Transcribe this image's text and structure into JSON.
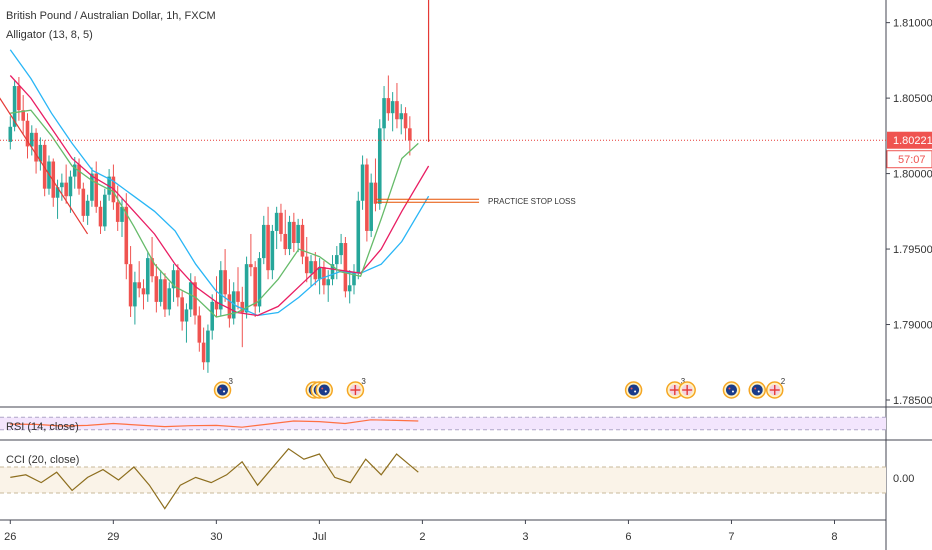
{
  "header": {
    "title": "British Pound / Australian Dollar, 1h, FXCM",
    "indicator": "Alligator (13, 8, 5)"
  },
  "annotation": {
    "label": "PRACTICE STOP LOSS"
  },
  "price_tag": {
    "price": "1.80221",
    "countdown": "57:07"
  },
  "rsi_panel": {
    "label": "RSI (14, close)"
  },
  "cci_panel": {
    "label": "CCI (20, close)",
    "tick": "0.00"
  },
  "colors": {
    "bull": "#26a69a",
    "bear": "#ef5350",
    "jaw": "#29b6f6",
    "teeth": "#e91e63",
    "lips": "#66bb6a",
    "rsi": "#ff7043",
    "cci": "#8d6e1e",
    "rsi_band": "#f3e5fd",
    "cci_band": "#faf3e8",
    "price_line": "#e53935",
    "trend_line": "#e53935"
  },
  "events": [
    {
      "time": 2.06,
      "flags": [
        "au"
      ],
      "count": "3"
    },
    {
      "time": 2.95,
      "flags": [
        "au",
        "au",
        "au"
      ],
      "count": ""
    },
    {
      "time": 3.35,
      "flags": [
        "gb"
      ],
      "count": "3"
    },
    {
      "time": 6.05,
      "flags": [
        "au"
      ],
      "count": ""
    },
    {
      "time": 6.45,
      "flags": [
        "gb"
      ],
      "count": "3"
    },
    {
      "time": 6.57,
      "flags": [
        "gb"
      ],
      "count": ""
    },
    {
      "time": 7.0,
      "flags": [
        "au"
      ],
      "count": ""
    },
    {
      "time": 7.25,
      "flags": [
        "au"
      ],
      "count": ""
    },
    {
      "time": 7.42,
      "flags": [
        "gb"
      ],
      "count": "2"
    }
  ],
  "chart_data": {
    "type": "candlestick",
    "title": "British Pound / Australian Dollar, 1h, FXCM",
    "x_ticks": [
      "26",
      "29",
      "30",
      "Jul",
      "2",
      "3",
      "6",
      "7",
      "8"
    ],
    "x_tick_times": [
      0,
      1,
      2,
      3,
      4,
      5,
      6,
      7,
      8
    ],
    "y_ticks": [
      "1.81000",
      "1.80500",
      "1.80000",
      "1.79500",
      "1.79000",
      "1.78500"
    ],
    "ylim": [
      1.785,
      1.8115
    ],
    "time_range": [
      -0.1,
      8.5
    ],
    "bar_start": 0.0,
    "bar_step": 0.0417,
    "candles": [
      [
        1.8021,
        1.8038,
        1.8016,
        1.8031
      ],
      [
        1.8031,
        1.8062,
        1.8028,
        1.8058
      ],
      [
        1.8058,
        1.8064,
        1.8035,
        1.8042
      ],
      [
        1.8042,
        1.8052,
        1.8026,
        1.8035
      ],
      [
        1.8035,
        1.804,
        1.801,
        1.8018
      ],
      [
        1.8018,
        1.8032,
        1.8012,
        1.8027
      ],
      [
        1.8027,
        1.803,
        1.8,
        1.8008
      ],
      [
        1.8008,
        1.8024,
        1.8002,
        1.8019
      ],
      [
        1.8019,
        1.8022,
        1.7985,
        1.799
      ],
      [
        1.799,
        1.8012,
        1.7986,
        1.8008
      ],
      [
        1.8008,
        1.801,
        1.7978,
        1.7984
      ],
      [
        1.7984,
        1.7996,
        1.797,
        1.7991
      ],
      [
        1.7991,
        1.8,
        1.7982,
        1.7994
      ],
      [
        1.7994,
        1.8006,
        1.798,
        1.7985
      ],
      [
        1.7985,
        1.8002,
        1.7974,
        1.7998
      ],
      [
        1.7998,
        1.8011,
        1.799,
        1.8006
      ],
      [
        1.8006,
        1.801,
        1.7986,
        1.799
      ],
      [
        1.799,
        1.7994,
        1.7968,
        1.7972
      ],
      [
        1.7972,
        1.7986,
        1.7966,
        1.7982
      ],
      [
        1.7982,
        1.8004,
        1.7978,
        1.8
      ],
      [
        1.8,
        1.8008,
        1.7974,
        1.7978
      ],
      [
        1.7978,
        1.7982,
        1.796,
        1.7965
      ],
      [
        1.7965,
        1.799,
        1.7962,
        1.7986
      ],
      [
        1.7986,
        1.8003,
        1.7982,
        1.7998
      ],
      [
        1.7998,
        1.8006,
        1.7976,
        1.7981
      ],
      [
        1.7981,
        1.7992,
        1.7962,
        1.7968
      ],
      [
        1.7968,
        1.7984,
        1.7958,
        1.7978
      ],
      [
        1.7978,
        1.7987,
        1.793,
        1.794
      ],
      [
        1.794,
        1.7952,
        1.7905,
        1.7912
      ],
      [
        1.7912,
        1.7935,
        1.79,
        1.7928
      ],
      [
        1.7928,
        1.7942,
        1.7918,
        1.7924
      ],
      [
        1.7924,
        1.793,
        1.791,
        1.792
      ],
      [
        1.792,
        1.7948,
        1.7915,
        1.7944
      ],
      [
        1.7944,
        1.7958,
        1.7928,
        1.7932
      ],
      [
        1.7932,
        1.794,
        1.7908,
        1.7915
      ],
      [
        1.7915,
        1.7936,
        1.7912,
        1.793
      ],
      [
        1.793,
        1.7934,
        1.7905,
        1.791
      ],
      [
        1.791,
        1.7928,
        1.7906,
        1.7924
      ],
      [
        1.7924,
        1.794,
        1.7915,
        1.7936
      ],
      [
        1.7936,
        1.794,
        1.7912,
        1.7918
      ],
      [
        1.7918,
        1.7922,
        1.7896,
        1.7902
      ],
      [
        1.7902,
        1.7914,
        1.7888,
        1.791
      ],
      [
        1.791,
        1.7934,
        1.7905,
        1.7928
      ],
      [
        1.7928,
        1.7932,
        1.79,
        1.7906
      ],
      [
        1.7906,
        1.7912,
        1.7882,
        1.7888
      ],
      [
        1.7888,
        1.7898,
        1.787,
        1.7875
      ],
      [
        1.7875,
        1.79,
        1.7868,
        1.7896
      ],
      [
        1.7896,
        1.792,
        1.789,
        1.7915
      ],
      [
        1.7915,
        1.7932,
        1.7905,
        1.791
      ],
      [
        1.791,
        1.7942,
        1.7906,
        1.7936
      ],
      [
        1.7936,
        1.795,
        1.7915,
        1.792
      ],
      [
        1.792,
        1.793,
        1.7898,
        1.7904
      ],
      [
        1.7904,
        1.7928,
        1.79,
        1.7922
      ],
      [
        1.7922,
        1.7938,
        1.791,
        1.7915
      ],
      [
        1.7915,
        1.7925,
        1.7885,
        1.7908
      ],
      [
        1.7908,
        1.7945,
        1.7904,
        1.794
      ],
      [
        1.794,
        1.796,
        1.7932,
        1.7938
      ],
      [
        1.7938,
        1.7942,
        1.7905,
        1.7912
      ],
      [
        1.7912,
        1.7948,
        1.7908,
        1.7944
      ],
      [
        1.7944,
        1.7972,
        1.794,
        1.7966
      ],
      [
        1.7966,
        1.7978,
        1.793,
        1.7936
      ],
      [
        1.7936,
        1.7966,
        1.793,
        1.7962
      ],
      [
        1.7962,
        1.7978,
        1.795,
        1.7974
      ],
      [
        1.7974,
        1.798,
        1.7955,
        1.796
      ],
      [
        1.796,
        1.7976,
        1.7946,
        1.795
      ],
      [
        1.795,
        1.7972,
        1.7946,
        1.7968
      ],
      [
        1.7968,
        1.7974,
        1.7948,
        1.7954
      ],
      [
        1.7954,
        1.797,
        1.7948,
        1.7966
      ],
      [
        1.7966,
        1.797,
        1.794,
        1.7945
      ],
      [
        1.7945,
        1.7958,
        1.7928,
        1.7934
      ],
      [
        1.7934,
        1.7946,
        1.7925,
        1.7942
      ],
      [
        1.7942,
        1.7948,
        1.7926,
        1.793
      ],
      [
        1.793,
        1.7944,
        1.792,
        1.7938
      ],
      [
        1.7938,
        1.7942,
        1.792,
        1.7926
      ],
      [
        1.7926,
        1.7936,
        1.7915,
        1.793
      ],
      [
        1.793,
        1.7946,
        1.7926,
        1.794
      ],
      [
        1.794,
        1.7952,
        1.793,
        1.7946
      ],
      [
        1.7946,
        1.796,
        1.794,
        1.7954
      ],
      [
        1.7954,
        1.7958,
        1.7918,
        1.7922
      ],
      [
        1.7922,
        1.7936,
        1.7914,
        1.7926
      ],
      [
        1.7926,
        1.794,
        1.792,
        1.7934
      ],
      [
        1.7934,
        1.7988,
        1.793,
        1.7982
      ],
      [
        1.7982,
        1.8012,
        1.7976,
        1.8006
      ],
      [
        1.8006,
        1.801,
        1.7955,
        1.7962
      ],
      [
        1.7962,
        1.8,
        1.7958,
        1.7994
      ],
      [
        1.7994,
        1.801,
        1.7975,
        1.798
      ],
      [
        1.798,
        1.8036,
        1.7976,
        1.803
      ],
      [
        1.803,
        1.8058,
        1.8022,
        1.805
      ],
      [
        1.805,
        1.8065,
        1.8035,
        1.804
      ],
      [
        1.804,
        1.8054,
        1.8028,
        1.8048
      ],
      [
        1.8048,
        1.806,
        1.803,
        1.8036
      ],
      [
        1.8036,
        1.8046,
        1.8026,
        1.804
      ],
      [
        1.804,
        1.8044,
        1.8022,
        1.803
      ],
      [
        1.803,
        1.8038,
        1.8012,
        1.8022
      ]
    ],
    "series": [
      {
        "name": "",
        "x": [
          0.0,
          0.2,
          0.4,
          0.6,
          0.8,
          1.0,
          1.2,
          1.4,
          1.6,
          1.8,
          2.0,
          2.2,
          2.4,
          2.6,
          2.8,
          3.0,
          3.2,
          3.4,
          3.6,
          3.8,
          4.06
        ],
        "values": [
          1.8082,
          1.8063,
          1.804,
          1.802,
          1.8002,
          1.7995,
          1.7985,
          1.7975,
          1.7962,
          1.794,
          1.7922,
          1.7912,
          1.7906,
          1.7908,
          1.7918,
          1.793,
          1.7935,
          1.7934,
          1.794,
          1.7955,
          1.7985
        ]
      },
      {
        "name": "",
        "x": [
          0.0,
          0.2,
          0.4,
          0.6,
          0.8,
          1.0,
          1.2,
          1.4,
          1.6,
          1.8,
          2.0,
          2.2,
          2.4,
          2.6,
          2.8,
          3.0,
          3.2,
          3.4,
          3.6,
          3.8,
          4.06
        ],
        "values": [
          1.8065,
          1.805,
          1.803,
          1.801,
          1.7998,
          1.799,
          1.7975,
          1.796,
          1.794,
          1.7925,
          1.7915,
          1.7908,
          1.7906,
          1.7912,
          1.7925,
          1.7938,
          1.7936,
          1.7934,
          1.795,
          1.7975,
          1.8005
        ]
      },
      {
        "name": "",
        "x": [
          0.0,
          0.2,
          0.4,
          0.6,
          0.8,
          1.0,
          1.2,
          1.4,
          1.6,
          1.8,
          2.0,
          2.2,
          2.4,
          2.6,
          2.8,
          3.0,
          3.2,
          3.4,
          3.6,
          3.8,
          3.96
        ],
        "values": [
          1.804,
          1.8042,
          1.8025,
          1.8005,
          1.7995,
          1.7988,
          1.7965,
          1.794,
          1.7925,
          1.7918,
          1.7905,
          1.7908,
          1.7915,
          1.793,
          1.795,
          1.7945,
          1.7935,
          1.7932,
          1.797,
          1.801,
          1.802
        ]
      }
    ],
    "rsi": {
      "label": "RSI (14, close)",
      "x": [
        0.0,
        0.25,
        0.5,
        0.75,
        1.0,
        1.25,
        1.5,
        1.75,
        2.0,
        2.25,
        2.5,
        2.75,
        3.0,
        3.25,
        3.5,
        3.75,
        3.96
      ],
      "values": [
        48,
        47,
        42,
        44,
        50,
        45,
        40,
        43,
        44,
        38,
        48,
        58,
        56,
        50,
        62,
        60,
        58
      ],
      "levels": [
        70,
        30
      ]
    },
    "cci": {
      "label": "CCI (20, close)",
      "x": [
        0.0,
        0.15,
        0.3,
        0.45,
        0.6,
        0.75,
        0.9,
        1.05,
        1.2,
        1.35,
        1.5,
        1.65,
        1.8,
        1.95,
        2.1,
        2.25,
        2.4,
        2.55,
        2.7,
        2.85,
        3.0,
        3.15,
        3.3,
        3.45,
        3.6,
        3.75,
        3.87,
        3.96
      ],
      "values": [
        20,
        40,
        -20,
        60,
        -80,
        20,
        80,
        0,
        100,
        -40,
        -220,
        -40,
        20,
        -20,
        40,
        140,
        -40,
        100,
        240,
        160,
        200,
        20,
        -20,
        160,
        40,
        200,
        120,
        60
      ],
      "ylim": [
        -300,
        300
      ],
      "tick_value": 0,
      "levels": [
        100,
        -100
      ]
    },
    "practice_stop_loss": {
      "price": 1.7982,
      "from_time": 3.55,
      "to_time": 4.55
    },
    "vertical_marker": {
      "time": 4.06,
      "from_price": 1.8115,
      "to_price": 1.8021
    },
    "trend_line": {
      "from_time": -0.15,
      "from_price": 1.8055,
      "to_time": 0.75,
      "to_price": 1.796
    },
    "current_price": 1.80221
  }
}
